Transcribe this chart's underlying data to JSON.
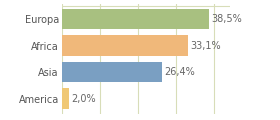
{
  "categories": [
    "America",
    "Asia",
    "Africa",
    "Europa"
  ],
  "values": [
    2.0,
    26.4,
    33.1,
    38.5
  ],
  "labels": [
    "2,0%",
    "26,4%",
    "33,1%",
    "38,5%"
  ],
  "bar_colors": [
    "#f0c875",
    "#7a9fc2",
    "#f0b87a",
    "#a8c080"
  ],
  "background_color": "#ffffff",
  "xlim": [
    0,
    44
  ],
  "label_fontsize": 7.0,
  "tick_fontsize": 7.0,
  "grid_color": "#d8ddb8",
  "grid_xticks": [
    0,
    10,
    20,
    30,
    40
  ]
}
